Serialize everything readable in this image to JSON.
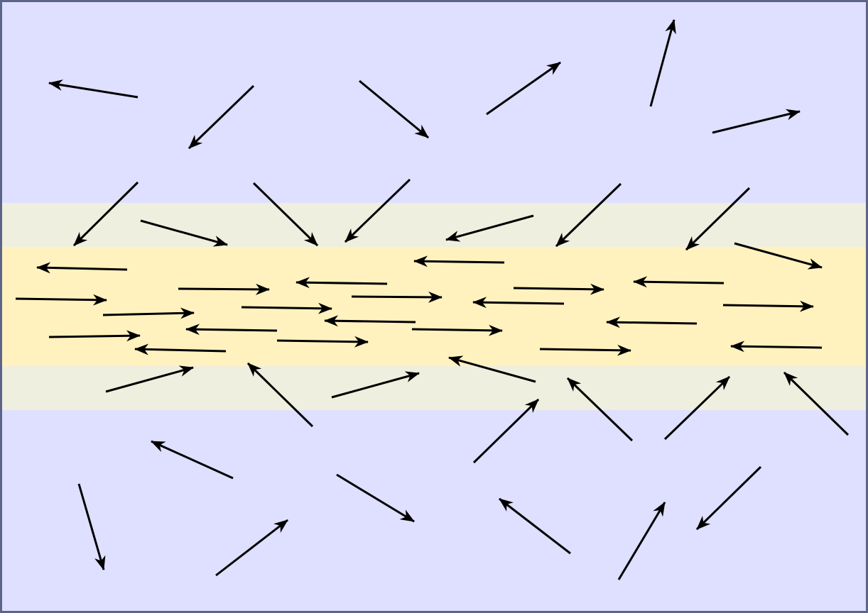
{
  "colors": {
    "outer_fill": "#dfdfff",
    "outer_border": "#5c6488",
    "transition_band": "#efefdf",
    "core_band": "#fff2bf",
    "arrow": "#000000"
  },
  "icons": {
    "arrow": "arrow-icon"
  }
}
